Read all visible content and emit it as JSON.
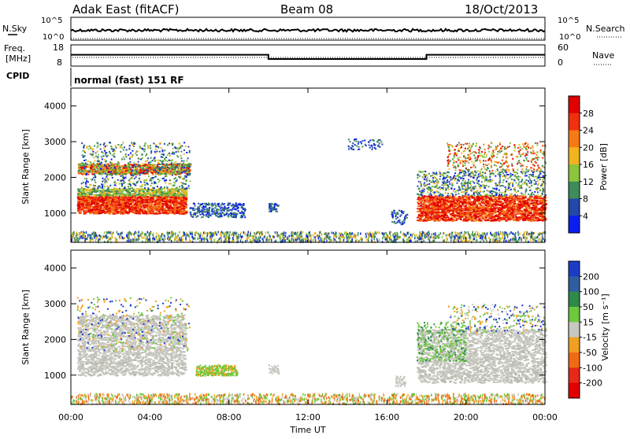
{
  "header": {
    "station": "Adak East (fitACF)",
    "beam": "Beam 08",
    "date": "18/Oct/2013"
  },
  "scan_panel": {
    "left_label": "N.Sky",
    "right_label": "N.Search",
    "left_ticks": [
      "10^5",
      "10^0"
    ],
    "right_ticks": [
      "10^5",
      "10^0"
    ]
  },
  "freq_panel": {
    "left_label_1": "Freq.",
    "left_label_2": "[MHz]",
    "right_label": "Nave",
    "left_ticks": [
      "18",
      "8"
    ],
    "right_ticks": [
      "60",
      "0"
    ]
  },
  "cpid_panel": {
    "label": "CPID",
    "mode_text": "normal (fast) 151 RF"
  },
  "time_axis": {
    "xlabel": "Time UT",
    "ticks": [
      "00:00",
      "04:00",
      "08:00",
      "12:00",
      "16:00",
      "20:00",
      "00:00"
    ]
  },
  "power_panel": {
    "ylabel": "Slant Range [km]",
    "yticks": [
      "1000",
      "2000",
      "3000",
      "4000"
    ],
    "colorbar_label": "Power [dB]",
    "colorbar_ticks": [
      "4",
      "8",
      "12",
      "16",
      "20",
      "24",
      "28"
    ],
    "colorbar_colors": [
      "#0a1ef0",
      "#2448a8",
      "#3d8c5a",
      "#8cc43c",
      "#f0b41e",
      "#f57a14",
      "#f0300e",
      "#e00000"
    ]
  },
  "velocity_panel": {
    "ylabel": "Slant Range [km]",
    "yticks": [
      "1000",
      "2000",
      "3000",
      "4000"
    ],
    "colorbar_label": "Velocity [m s⁻¹]",
    "colorbar_ticks": [
      "200",
      "100",
      "50",
      "15",
      "-15",
      "-50",
      "-100",
      "-200"
    ],
    "colorbar_colors": [
      "#1c3cc8",
      "#2f5ea0",
      "#2e8a4a",
      "#6cc83c",
      "#c8c8c0",
      "#f0a020",
      "#f06a14",
      "#e82818",
      "#e00000"
    ]
  },
  "chart_data": {
    "type": "heatmap",
    "x_range_hours": [
      0,
      24
    ],
    "y_range_km": [
      180,
      4500
    ],
    "frequency_mhz_steps": [
      {
        "start": "00:00",
        "end": "10:00",
        "freq": 13
      },
      {
        "start": "10:00",
        "end": "18:00",
        "freq": 10
      },
      {
        "start": "18:00",
        "end": "24:00",
        "freq": 13
      }
    ]
  }
}
